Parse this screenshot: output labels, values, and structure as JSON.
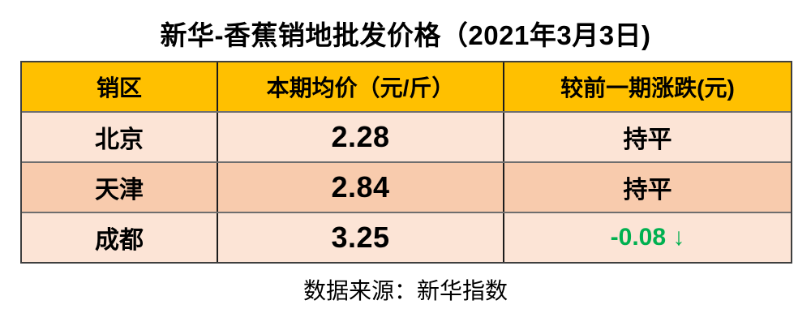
{
  "title": "新华-香蕉销地批发价格（2021年3月3日)",
  "table": {
    "headers": {
      "region": "销区",
      "price": "本期均价（元/斤）",
      "change": "较前一期涨跌(元)"
    },
    "rows": [
      {
        "region": "北京",
        "price": "2.28",
        "change": "持平",
        "change_color": "#000000"
      },
      {
        "region": "天津",
        "price": "2.84",
        "change": "持平",
        "change_color": "#000000"
      },
      {
        "region": "成都",
        "price": "3.25",
        "change": "-0.08 ↓",
        "change_color": "#00B050"
      }
    ]
  },
  "source": "数据来源：新华指数",
  "colors": {
    "header_bg": "#FFC000",
    "row_light": "#FCE4D6",
    "row_dark": "#F8CBAD",
    "change_down_green": "#00B050",
    "text": "#000000"
  },
  "chart_data": {
    "type": "table",
    "title": "新华-香蕉销地批发价格（2021年3月3日)",
    "columns": [
      "销区",
      "本期均价（元/斤）",
      "较前一期涨跌(元)"
    ],
    "rows": [
      [
        "北京",
        2.28,
        "持平"
      ],
      [
        "天津",
        2.84,
        "持平"
      ],
      [
        "成都",
        3.25,
        "-0.08 ↓"
      ]
    ],
    "source": "数据来源：新华指数"
  }
}
